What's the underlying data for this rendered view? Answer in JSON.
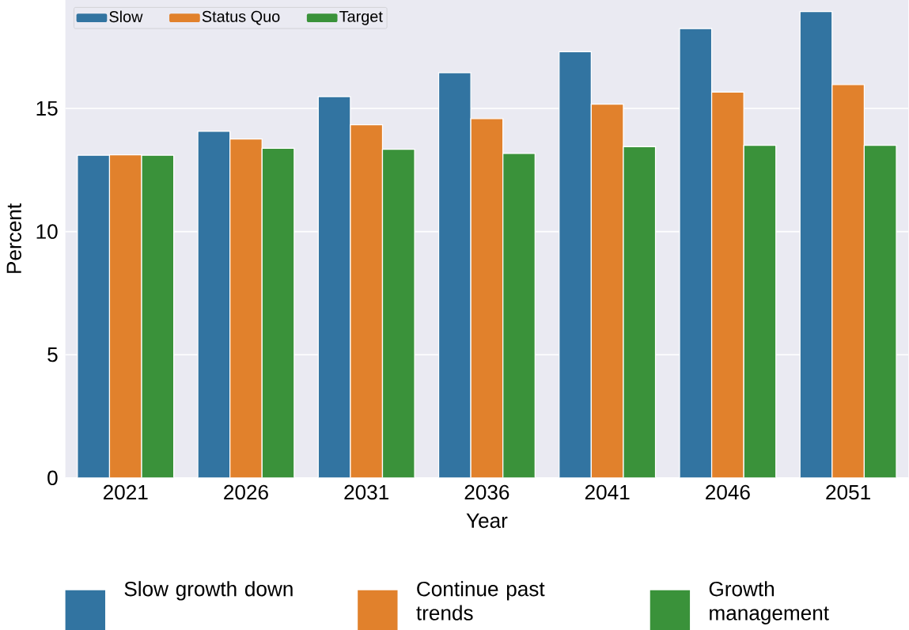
{
  "chart_data": {
    "type": "bar",
    "xlabel": "Year",
    "ylabel": "Percent",
    "categories": [
      "2021",
      "2026",
      "2031",
      "2036",
      "2041",
      "2046",
      "2051"
    ],
    "series": [
      {
        "name": "Slow",
        "color": "#3274a1",
        "values": [
          13.1,
          14.07,
          15.48,
          16.45,
          17.3,
          18.24,
          18.93
        ]
      },
      {
        "name": "Status Quo",
        "color": "#e1812c",
        "values": [
          13.12,
          13.76,
          14.34,
          14.59,
          15.17,
          15.66,
          15.97
        ]
      },
      {
        "name": "Target",
        "color": "#3a923a",
        "values": [
          13.1,
          13.38,
          13.34,
          13.17,
          13.45,
          13.5,
          13.5
        ]
      }
    ],
    "ylim": [
      0,
      19.4
    ],
    "yticks": [
      0,
      5,
      10,
      15
    ],
    "grid": "y",
    "legend": "top left",
    "annotations": [
      "Slow growth down",
      "Continue past trends",
      "Growth management"
    ]
  }
}
